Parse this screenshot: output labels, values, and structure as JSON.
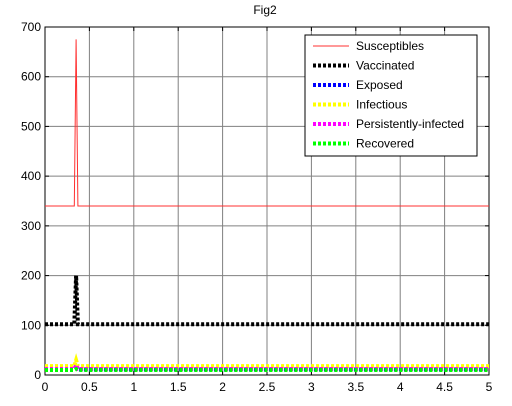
{
  "chart_data": {
    "type": "line",
    "title": "Fig2",
    "xlabel": "",
    "ylabel": "",
    "xlim": [
      0,
      5
    ],
    "ylim": [
      0,
      700
    ],
    "xticks": [
      0,
      0.5,
      1,
      1.5,
      2,
      2.5,
      3,
      3.5,
      4,
      4.5,
      5
    ],
    "xtick_labels": [
      "0",
      "0.5",
      "1",
      "1.5",
      "2",
      "2.5",
      "3",
      "3.5",
      "4",
      "4.5",
      "5"
    ],
    "yticks": [
      0,
      100,
      200,
      300,
      400,
      500,
      600,
      700
    ],
    "ytick_labels": [
      "0",
      "100",
      "200",
      "300",
      "400",
      "500",
      "600",
      "700"
    ],
    "grid": true,
    "legend_position": "top-right",
    "series": [
      {
        "name": "Susceptibles",
        "color": "#ff3030",
        "style": "solid",
        "x": [
          0,
          0.33,
          0.35,
          0.37,
          5
        ],
        "y": [
          340,
          340,
          675,
          340,
          340
        ]
      },
      {
        "name": "Vaccinated",
        "color": "#000000",
        "style": "dotted",
        "x": [
          0,
          0.33,
          0.35,
          0.37,
          5
        ],
        "y": [
          102,
          102,
          200,
          102,
          102
        ]
      },
      {
        "name": "Exposed",
        "color": "#0000ff",
        "style": "dotted",
        "x": [
          0,
          0.33,
          0.35,
          0.37,
          5
        ],
        "y": [
          11,
          11,
          14,
          11,
          11
        ]
      },
      {
        "name": "Infectious",
        "color": "#ffff00",
        "style": "dotted",
        "x": [
          0,
          0.33,
          0.35,
          0.37,
          5
        ],
        "y": [
          18,
          18,
          30,
          18,
          18
        ]
      },
      {
        "name": "Persistently-infected",
        "color": "#ff00ff",
        "style": "dotted",
        "x": [
          0,
          0.33,
          0.35,
          0.37,
          5
        ],
        "y": [
          12,
          12,
          20,
          12,
          12
        ]
      },
      {
        "name": "Recovered",
        "color": "#00ff00",
        "style": "dotted",
        "x": [
          0,
          0.33,
          0.35,
          0.37,
          5
        ],
        "y": [
          10,
          10,
          12,
          10,
          10
        ]
      }
    ]
  }
}
